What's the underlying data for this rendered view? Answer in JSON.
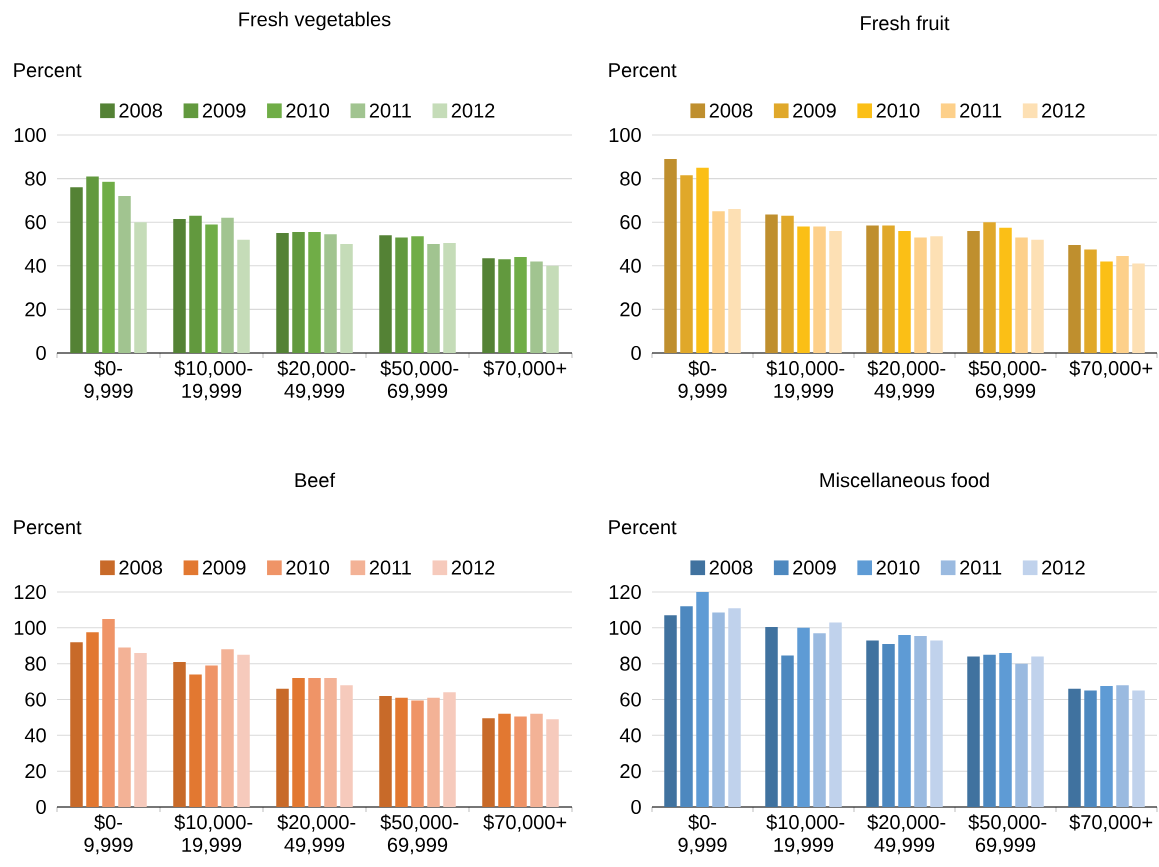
{
  "chart_data": [
    {
      "type": "bar",
      "title": "Fresh vegetables",
      "ylabel": "Percent",
      "categories": [
        "$0-9,999",
        "$10,000-19,999",
        "$20,000-49,999",
        "$50,000-69,999",
        "$70,000+"
      ],
      "series": [
        {
          "name": "2008",
          "color": "#548235",
          "values": [
            76,
            61.5,
            55,
            54,
            43.5
          ]
        },
        {
          "name": "2009",
          "color": "#62993e",
          "values": [
            81,
            63,
            55.5,
            53,
            43
          ]
        },
        {
          "name": "2010",
          "color": "#70ad47",
          "values": [
            78.5,
            59,
            55.5,
            53.5,
            44
          ]
        },
        {
          "name": "2011",
          "color": "#a1c490",
          "values": [
            72,
            62,
            54.5,
            50,
            42
          ]
        },
        {
          "name": "2012",
          "color": "#c5dcb8",
          "values": [
            60,
            52,
            50,
            50.5,
            40
          ]
        }
      ],
      "ylim": [
        0,
        100
      ],
      "yticks": [
        0,
        20,
        40,
        60,
        80,
        100
      ],
      "grid": "y",
      "legend": "top"
    },
    {
      "type": "bar",
      "title": "Fresh fruit",
      "ylabel": "Percent",
      "categories": [
        "$0-9,999",
        "$10,000-19,999",
        "$20,000-49,999",
        "$50,000-69,999",
        "$70,000+"
      ],
      "series": [
        {
          "name": "2008",
          "color": "#bf8f2e",
          "values": [
            89,
            63.5,
            58.5,
            56,
            49.5
          ]
        },
        {
          "name": "2009",
          "color": "#e0a82a",
          "values": [
            81.5,
            63,
            58.5,
            60,
            47.5
          ]
        },
        {
          "name": "2010",
          "color": "#fbbf16",
          "values": [
            85,
            58,
            56,
            57.5,
            42
          ]
        },
        {
          "name": "2011",
          "color": "#fdd08a",
          "values": [
            65,
            58,
            53,
            53,
            44.5
          ]
        },
        {
          "name": "2012",
          "color": "#fde0b4",
          "values": [
            66,
            56,
            53.5,
            52,
            41
          ]
        }
      ],
      "ylim": [
        0,
        100
      ],
      "yticks": [
        0,
        20,
        40,
        60,
        80,
        100
      ],
      "grid": "y",
      "legend": "top"
    },
    {
      "type": "bar",
      "title": "Beef",
      "ylabel": "Percent",
      "categories": [
        "$0-9,999",
        "$10,000-19,999",
        "$20,000-49,999",
        "$50,000-69,999",
        "$70,000+"
      ],
      "series": [
        {
          "name": "2008",
          "color": "#c86a29",
          "values": [
            92,
            81,
            66,
            62,
            49.5
          ]
        },
        {
          "name": "2009",
          "color": "#e27831",
          "values": [
            97.5,
            74,
            72,
            61,
            52
          ]
        },
        {
          "name": "2010",
          "color": "#ef9467",
          "values": [
            105,
            79,
            72,
            59.5,
            50.5
          ]
        },
        {
          "name": "2011",
          "color": "#f3b296",
          "values": [
            89,
            88,
            72,
            61,
            52
          ]
        },
        {
          "name": "2012",
          "color": "#f6cabc",
          "values": [
            86,
            85,
            68,
            64,
            49
          ]
        }
      ],
      "ylim": [
        0,
        120
      ],
      "yticks": [
        0,
        20,
        40,
        60,
        80,
        100,
        120
      ],
      "grid": "y",
      "legend": "top"
    },
    {
      "type": "bar",
      "title": "Miscellaneous food",
      "ylabel": "Percent",
      "categories": [
        "$0-9,999",
        "$10,000-19,999",
        "$20,000-49,999",
        "$50,000-69,999",
        "$70,000+"
      ],
      "series": [
        {
          "name": "2008",
          "color": "#40729f",
          "values": [
            107,
            100.5,
            93,
            84,
            66
          ]
        },
        {
          "name": "2009",
          "color": "#4d88bf",
          "values": [
            112,
            84.5,
            91,
            85,
            65
          ]
        },
        {
          "name": "2010",
          "color": "#5e9bd5",
          "values": [
            120,
            100,
            96,
            86,
            67.5
          ]
        },
        {
          "name": "2011",
          "color": "#9abae0",
          "values": [
            108.5,
            97,
            95.5,
            80,
            68
          ]
        },
        {
          "name": "2012",
          "color": "#c0d2ec",
          "values": [
            111,
            103,
            93,
            84,
            65
          ]
        }
      ],
      "ylim": [
        0,
        120
      ],
      "yticks": [
        0,
        20,
        40,
        60,
        80,
        100,
        120
      ],
      "grid": "y",
      "legend": "top"
    }
  ]
}
